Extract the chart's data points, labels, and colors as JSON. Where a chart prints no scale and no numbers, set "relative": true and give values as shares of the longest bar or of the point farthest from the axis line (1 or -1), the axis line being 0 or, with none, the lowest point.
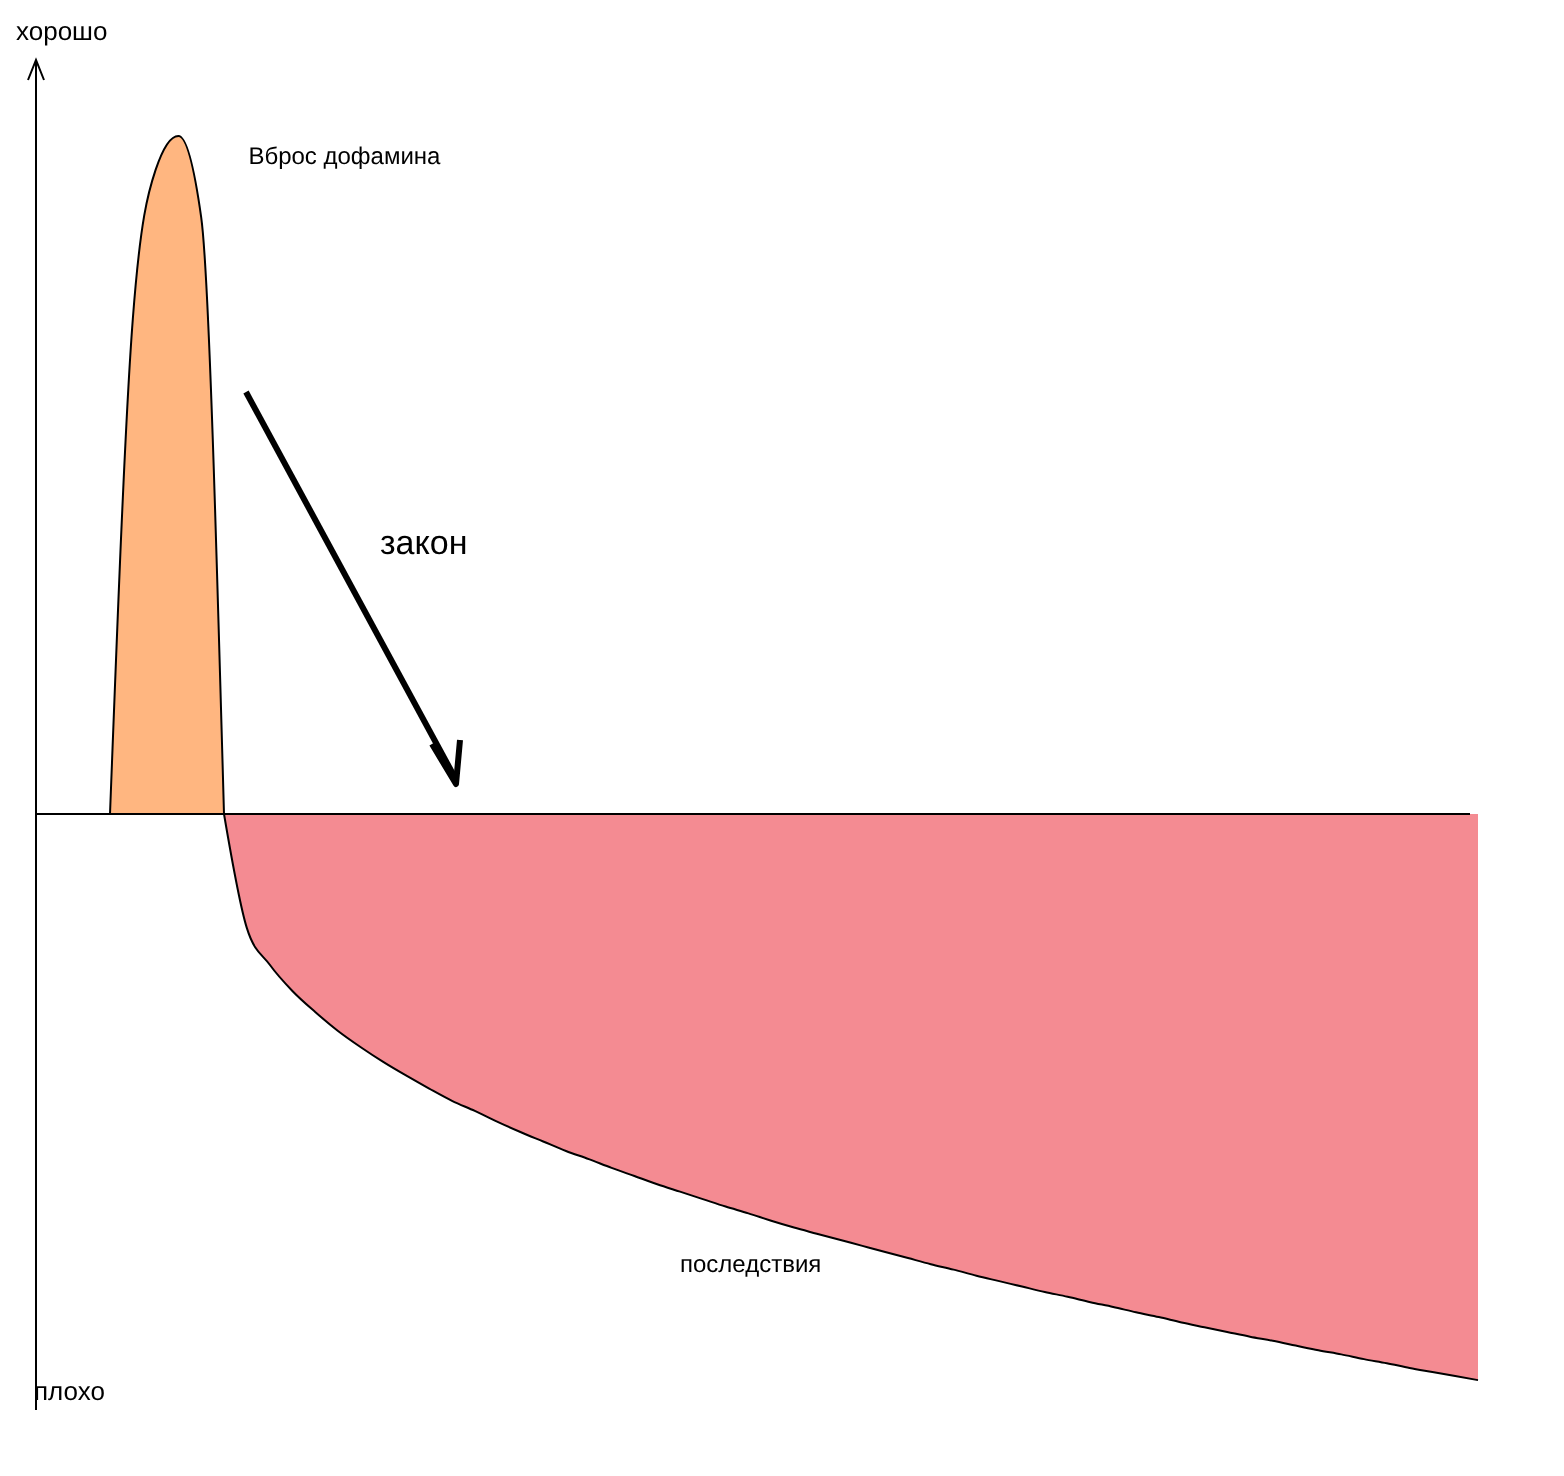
{
  "chart_data": {
    "type": "area",
    "relative": true,
    "categories": [
      null,
      null,
      null,
      null,
      null,
      null,
      null,
      null,
      null,
      null,
      null,
      null,
      null,
      null,
      null,
      null,
      null,
      null,
      null,
      null,
      null,
      null,
      null,
      null,
      null,
      null,
      null,
      null,
      null,
      null,
      null,
      null,
      null,
      null,
      null,
      null,
      null,
      null,
      null,
      null,
      null,
      null,
      null,
      null,
      null,
      null,
      null,
      null,
      null,
      null,
      null,
      null,
      null,
      null,
      null,
      null,
      null,
      null,
      null,
      null,
      null,
      null,
      null,
      null
    ],
    "series": [
      {
        "name": "Вброс дофамина",
        "color": "#ffb680",
        "values": [
          null,
          null,
          null,
          0,
          0.73,
          0.95,
          1,
          0.88,
          0,
          null,
          null,
          null,
          null,
          null,
          null,
          null,
          null,
          null,
          null,
          null,
          null,
          null,
          null,
          null,
          null,
          null,
          null,
          null,
          null,
          null,
          null,
          null,
          null,
          null,
          null,
          null,
          null,
          null,
          null,
          null,
          null,
          null,
          null,
          null,
          null,
          null,
          null,
          null,
          null,
          null,
          null,
          null,
          null,
          null,
          null,
          null,
          null,
          null,
          null,
          null,
          null,
          null,
          null,
          null
        ]
      },
      {
        "name": "последствия",
        "color": "#f48b92",
        "values": [
          null,
          null,
          null,
          null,
          null,
          null,
          null,
          null,
          0,
          -0.168,
          -0.222,
          -0.261,
          -0.292,
          -0.32,
          -0.344,
          -0.366,
          -0.386,
          -0.405,
          -0.423,
          -0.438,
          -0.454,
          -0.469,
          -0.483,
          -0.497,
          -0.509,
          -0.522,
          -0.534,
          -0.546,
          -0.557,
          -0.568,
          -0.579,
          -0.589,
          -0.6,
          -0.61,
          -0.619,
          -0.628,
          -0.637,
          -0.646,
          -0.655,
          -0.664,
          -0.672,
          -0.681,
          -0.689,
          -0.697,
          -0.705,
          -0.712,
          -0.72,
          -0.727,
          -0.735,
          -0.742,
          -0.75,
          -0.757,
          -0.764,
          -0.771,
          -0.777,
          -0.784,
          -0.791,
          -0.797,
          -0.804,
          -0.81,
          -0.817,
          -0.823,
          -0.829,
          -0.835
        ]
      }
    ],
    "annotations": [
      "хорошо",
      "плохо",
      "закон"
    ]
  }
}
